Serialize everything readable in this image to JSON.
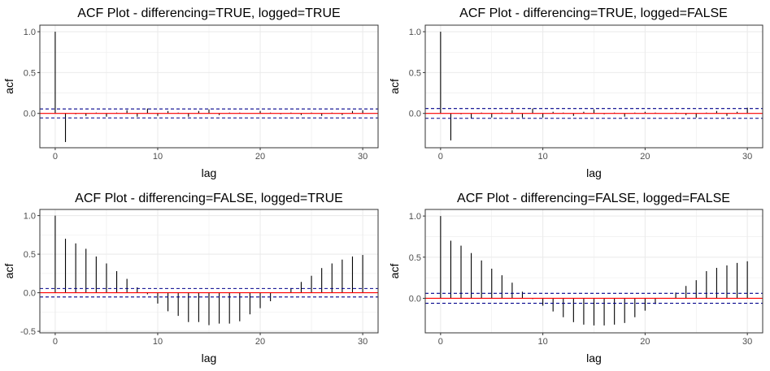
{
  "colors": {
    "bar": "#000000",
    "zero_line": "#ff0000",
    "confidence_band": "#00008b",
    "grid": "#ebebeb",
    "panel_border": "#333333",
    "background": "#ffffff"
  },
  "chart_data": [
    {
      "type": "bar",
      "title": "ACF Plot - differencing=TRUE, logged=TRUE",
      "xlabel": "lag",
      "ylabel": "acf",
      "x": [
        0,
        1,
        2,
        3,
        4,
        5,
        6,
        7,
        8,
        9,
        10,
        11,
        12,
        13,
        14,
        15,
        16,
        17,
        18,
        19,
        20,
        21,
        22,
        23,
        24,
        25,
        26,
        27,
        28,
        29,
        30
      ],
      "values": [
        1.0,
        -0.35,
        -0.01,
        -0.03,
        0.01,
        -0.04,
        0.01,
        0.04,
        -0.04,
        0.06,
        -0.03,
        0.03,
        0.01,
        -0.04,
        0.03,
        0.05,
        -0.02,
        0.01,
        0.01,
        0.0,
        0.03,
        0.01,
        -0.01,
        0.01,
        -0.02,
        0.01,
        -0.03,
        0.01,
        -0.02,
        0.03,
        0.04
      ],
      "confidence_band": [
        -0.055,
        0.055
      ],
      "xlim": [
        -1.5,
        31.5
      ],
      "ylim": [
        -0.42,
        1.08
      ],
      "xticks": [
        0,
        10,
        20,
        30
      ],
      "yticks": [
        0.0,
        0.5,
        1.0
      ],
      "ytick_labels": [
        "0.0",
        "0.5",
        "1.0"
      ],
      "grid": true
    },
    {
      "type": "bar",
      "title": "ACF Plot - differencing=TRUE, logged=FALSE",
      "xlabel": "lag",
      "ylabel": "acf",
      "x": [
        0,
        1,
        2,
        3,
        4,
        5,
        6,
        7,
        8,
        9,
        10,
        11,
        12,
        13,
        14,
        15,
        16,
        17,
        18,
        19,
        20,
        21,
        22,
        23,
        24,
        25,
        26,
        27,
        28,
        29,
        30
      ],
      "values": [
        1.0,
        -0.33,
        -0.01,
        -0.06,
        0.01,
        -0.05,
        0.01,
        0.04,
        -0.05,
        0.06,
        -0.05,
        0.02,
        0.01,
        -0.03,
        0.02,
        0.05,
        -0.01,
        0.01,
        -0.04,
        0.01,
        0.02,
        0.01,
        0.0,
        0.01,
        -0.02,
        -0.05,
        0.01,
        0.03,
        -0.03,
        0.02,
        0.07
      ],
      "confidence_band": [
        -0.06,
        0.06
      ],
      "xlim": [
        -1.5,
        31.5
      ],
      "ylim": [
        -0.42,
        1.08
      ],
      "xticks": [
        0,
        10,
        20,
        30
      ],
      "yticks": [
        0.0,
        0.5,
        1.0
      ],
      "ytick_labels": [
        "0.0",
        "0.5",
        "1.0"
      ],
      "grid": true
    },
    {
      "type": "bar",
      "title": "ACF Plot - differencing=FALSE, logged=TRUE",
      "xlabel": "lag",
      "ylabel": "acf",
      "x": [
        0,
        1,
        2,
        3,
        4,
        5,
        6,
        7,
        8,
        9,
        10,
        11,
        12,
        13,
        14,
        15,
        16,
        17,
        18,
        19,
        20,
        21,
        22,
        23,
        24,
        25,
        26,
        27,
        28,
        29,
        30
      ],
      "values": [
        1.0,
        0.7,
        0.64,
        0.57,
        0.47,
        0.38,
        0.28,
        0.18,
        0.07,
        -0.02,
        -0.14,
        -0.24,
        -0.3,
        -0.38,
        -0.38,
        -0.42,
        -0.4,
        -0.4,
        -0.37,
        -0.28,
        -0.2,
        -0.11,
        0.0,
        0.06,
        0.14,
        0.22,
        0.32,
        0.38,
        0.43,
        0.47,
        0.49
      ],
      "confidence_band": [
        -0.055,
        0.055
      ],
      "xlim": [
        -1.5,
        31.5
      ],
      "ylim": [
        -0.52,
        1.08
      ],
      "xticks": [
        0,
        10,
        20,
        30
      ],
      "yticks": [
        -0.5,
        0.0,
        0.5,
        1.0
      ],
      "ytick_labels": [
        "-0.5",
        "0.0",
        "0.5",
        "1.0"
      ],
      "grid": true
    },
    {
      "type": "bar",
      "title": "ACF Plot - differencing=FALSE, logged=FALSE",
      "xlabel": "lag",
      "ylabel": "acf",
      "x": [
        0,
        1,
        2,
        3,
        4,
        5,
        6,
        7,
        8,
        9,
        10,
        11,
        12,
        13,
        14,
        15,
        16,
        17,
        18,
        19,
        20,
        21,
        22,
        23,
        24,
        25,
        26,
        27,
        28,
        29,
        30
      ],
      "values": [
        1.0,
        0.7,
        0.64,
        0.55,
        0.46,
        0.36,
        0.28,
        0.19,
        0.08,
        -0.01,
        -0.09,
        -0.16,
        -0.23,
        -0.29,
        -0.32,
        -0.33,
        -0.33,
        -0.32,
        -0.3,
        -0.23,
        -0.15,
        -0.07,
        0.0,
        0.07,
        0.15,
        0.22,
        0.33,
        0.37,
        0.4,
        0.43,
        0.45
      ],
      "confidence_band": [
        -0.06,
        0.06
      ],
      "xlim": [
        -1.5,
        31.5
      ],
      "ylim": [
        -0.42,
        1.08
      ],
      "xticks": [
        0,
        10,
        20,
        30
      ],
      "yticks": [
        0.0,
        0.5,
        1.0
      ],
      "ytick_labels": [
        "0.0",
        "0.5",
        "1.0"
      ],
      "grid": true
    }
  ]
}
